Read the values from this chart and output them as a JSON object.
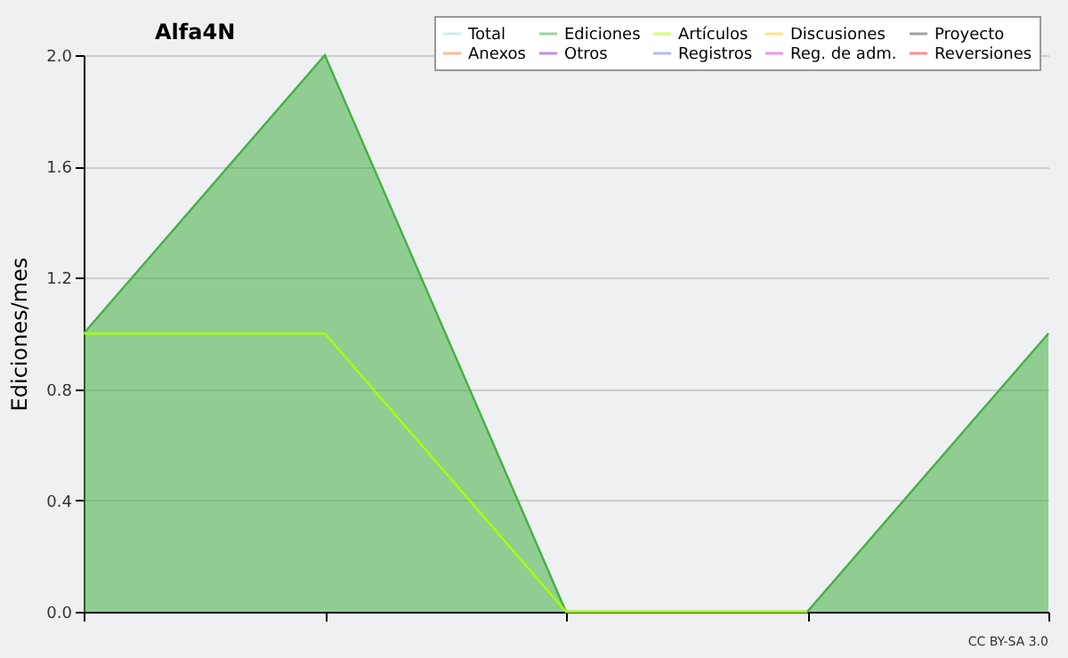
{
  "chart_data": {
    "type": "line",
    "title": "Alfa4N",
    "ylabel": "Ediciones/mes",
    "categories": [
      null,
      null,
      null,
      null,
      null
    ],
    "series": [
      {
        "name": "Total",
        "color": "#a0e0e0",
        "values": [
          null,
          null,
          null,
          null,
          null
        ]
      },
      {
        "name": "Ediciones",
        "color": "#44b044",
        "type": "area",
        "values": [
          1,
          2,
          0,
          0,
          1
        ]
      },
      {
        "name": "Artículos",
        "color": "#aaff00",
        "values": [
          1,
          1,
          0,
          0,
          null
        ]
      },
      {
        "name": "Discusiones",
        "color": "#ffcc33",
        "values": [
          null,
          null,
          null,
          null,
          null
        ]
      },
      {
        "name": "Proyecto",
        "color": "#555555",
        "values": [
          null,
          null,
          null,
          null,
          null
        ]
      },
      {
        "name": "Anexos",
        "color": "#ff7f40",
        "values": [
          null,
          null,
          null,
          null,
          null
        ]
      },
      {
        "name": "Otros",
        "color": "#8a2be2",
        "values": [
          null,
          null,
          null,
          null,
          null
        ]
      },
      {
        "name": "Registros",
        "color": "#7f7fff",
        "values": [
          null,
          null,
          null,
          null,
          null
        ]
      },
      {
        "name": "Reg. de adm.",
        "color": "#e040e0",
        "values": [
          null,
          null,
          null,
          null,
          null
        ]
      },
      {
        "name": "Reversiones",
        "color": "#ff3030",
        "values": [
          null,
          null,
          null,
          null,
          null
        ]
      }
    ],
    "ylim": [
      0,
      2
    ],
    "yticks": [
      {
        "value": 0,
        "label": "0.0"
      },
      {
        "value": 0.4,
        "label": "0.4"
      },
      {
        "value": 0.8,
        "label": "0.8"
      },
      {
        "value": 1.2,
        "label": "1.2"
      },
      {
        "value": 1.6,
        "label": "1.6"
      },
      {
        "value": 2,
        "label": "2.0"
      }
    ],
    "grid": "y",
    "legend": "top right",
    "tick_labels": "y",
    "marker": "none",
    "annotations": [
      "CC BY-SA 3.0"
    ]
  }
}
